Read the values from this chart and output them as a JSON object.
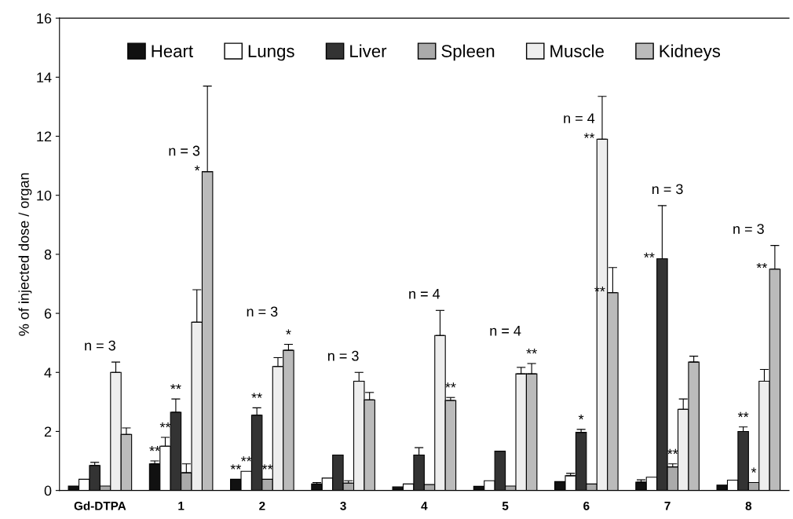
{
  "chart_data": {
    "type": "bar",
    "ylabel": "% of injected dose / organ",
    "categories": [
      "Gd-DTPA",
      "1",
      "2",
      "3",
      "4",
      "5",
      "6",
      "7",
      "8"
    ],
    "ylim": [
      0,
      16
    ],
    "yticks": [
      0,
      2,
      4,
      6,
      8,
      10,
      12,
      14,
      16
    ],
    "grid": false,
    "legend": "top",
    "series": [
      {
        "name": "Heart",
        "color": "#111111",
        "values": [
          0.15,
          0.9,
          0.38,
          0.22,
          0.12,
          0.14,
          0.3,
          0.28,
          0.18
        ],
        "errors": [
          null,
          0.1,
          null,
          0.05,
          null,
          null,
          null,
          0.08,
          null
        ],
        "value_labels": [
          null,
          "**",
          "**",
          null,
          null,
          null,
          null,
          null,
          null
        ]
      },
      {
        "name": "Lungs",
        "color": "#ffffff",
        "values": [
          0.38,
          1.5,
          0.65,
          0.42,
          0.22,
          0.33,
          0.5,
          0.45,
          0.35
        ],
        "errors": [
          null,
          0.3,
          null,
          null,
          null,
          null,
          0.08,
          null,
          null
        ],
        "value_labels": [
          null,
          "**",
          "**",
          null,
          null,
          null,
          null,
          null,
          null
        ]
      },
      {
        "name": "Liver",
        "color": "#333333",
        "values": [
          0.85,
          2.65,
          2.55,
          1.2,
          1.2,
          1.33,
          1.97,
          7.85,
          2.0
        ],
        "errors": [
          0.1,
          0.45,
          0.25,
          null,
          0.25,
          null,
          0.1,
          1.8,
          0.15
        ],
        "value_labels": [
          null,
          "**",
          "**",
          null,
          null,
          null,
          "*",
          "**",
          "**"
        ]
      },
      {
        "name": "Spleen",
        "color": "#aaaaaa",
        "values": [
          0.15,
          0.6,
          0.38,
          0.25,
          0.2,
          0.15,
          0.22,
          0.8,
          0.27
        ],
        "errors": [
          null,
          0.3,
          null,
          0.08,
          null,
          null,
          null,
          0.1,
          null
        ],
        "value_labels": [
          null,
          null,
          "**",
          null,
          null,
          null,
          null,
          "**",
          "*"
        ]
      },
      {
        "name": "Muscle",
        "color": "#eeeeee",
        "values": [
          4.0,
          5.7,
          4.2,
          3.7,
          5.25,
          3.95,
          11.9,
          2.75,
          3.7
        ],
        "errors": [
          0.35,
          1.1,
          0.3,
          0.3,
          0.85,
          0.22,
          1.45,
          0.35,
          0.4
        ],
        "value_labels": [
          null,
          null,
          null,
          null,
          null,
          null,
          "**",
          null,
          null
        ]
      },
      {
        "name": "Kidneys",
        "color": "#bbbbbb",
        "values": [
          1.9,
          10.8,
          4.75,
          3.07,
          3.05,
          3.95,
          6.7,
          4.35,
          7.5
        ],
        "errors": [
          0.22,
          2.9,
          0.2,
          0.25,
          0.1,
          0.35,
          0.85,
          0.2,
          0.8
        ],
        "value_labels": [
          null,
          "*",
          "*",
          null,
          "**",
          "**",
          "**",
          null,
          "**"
        ]
      }
    ],
    "annotations": [
      "n = 3",
      "n = 3",
      "n = 3",
      "n = 3",
      "n = 4",
      "n = 4",
      "n = 4",
      "n = 3",
      "n = 3"
    ]
  }
}
